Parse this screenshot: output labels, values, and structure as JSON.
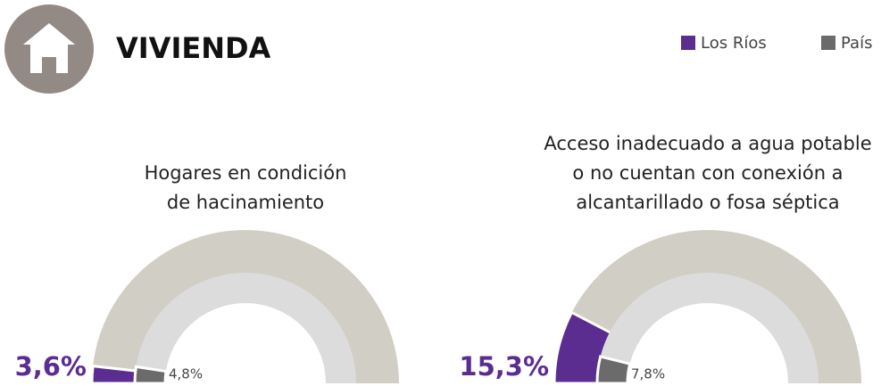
{
  "header": {
    "title": "VIVIENDA"
  },
  "chart_data": [
    {
      "type": "gauge",
      "title": [
        "Hogares en condición",
        "de hacinamiento"
      ],
      "ylim": [
        0,
        100
      ],
      "series": [
        {
          "name": "Los Ríos",
          "color": "#5b2d90",
          "track_color": "#d1cec5",
          "values": [
            3.6
          ],
          "value_labels": [
            "3,6%"
          ]
        },
        {
          "name": "País",
          "color": "#6b6b6b",
          "track_color": "#dcdcdc",
          "values": [
            4.8
          ],
          "value_labels": [
            "4,8%"
          ]
        }
      ]
    },
    {
      "type": "gauge",
      "title": [
        "Acceso inadecuado a agua potable",
        "o no cuentan con conexión a",
        "alcantarillado o fosa séptica"
      ],
      "ylim": [
        0,
        100
      ],
      "series": [
        {
          "color": "#5b2d90",
          "track_color": "#d1cec5",
          "values": [
            15.3
          ],
          "value_labels": [
            "15,3%"
          ]
        },
        {
          "color": "#6b6b6b",
          "track_color": "#dcdcdc",
          "values": [
            7.8
          ],
          "value_labels": [
            "7,8%"
          ]
        }
      ]
    }
  ]
}
